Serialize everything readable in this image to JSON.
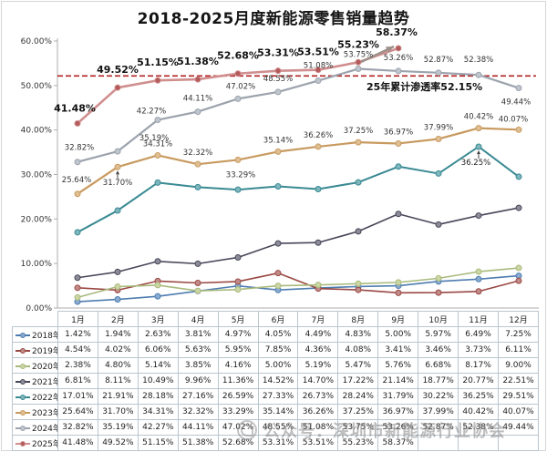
{
  "title": "2018-2025月度新能源零售销量趋势",
  "watermark": "公众号：深圳市新能源行业协会",
  "chart_data": {
    "type": "line",
    "title": "2018-2025月度新能源零售销量趋势",
    "xlabel": "",
    "ylabel": "",
    "ylim": [
      0,
      60
    ],
    "grid": false,
    "legend_position": "table-left-column",
    "ytick_labels": [
      "0.00%",
      "10.00%",
      "20.00%",
      "30.00%",
      "40.00%",
      "50.00%",
      "60.00%"
    ],
    "categories": [
      "1月",
      "2月",
      "3月",
      "4月",
      "5月",
      "6月",
      "7月",
      "8月",
      "9月",
      "10月",
      "11月",
      "12月"
    ],
    "series": [
      {
        "name": "2018年",
        "color": "#4E7CB0",
        "marker": "#8AABD0",
        "width": 1.6,
        "values": [
          1.42,
          1.94,
          2.63,
          3.81,
          4.97,
          4.05,
          4.49,
          4.83,
          5.0,
          5.97,
          6.49,
          7.25
        ]
      },
      {
        "name": "2019年",
        "color": "#9A4843",
        "marker": "#C08B88",
        "width": 1.6,
        "values": [
          4.54,
          4.02,
          6.06,
          5.63,
          5.95,
          7.85,
          4.36,
          4.08,
          3.41,
          3.46,
          3.73,
          6.11
        ]
      },
      {
        "name": "2020年",
        "color": "#A9BA7D",
        "marker": "#CBD6A4",
        "width": 1.6,
        "values": [
          2.38,
          4.8,
          5.14,
          3.85,
          4.16,
          5.0,
          5.19,
          5.47,
          5.76,
          6.68,
          8.17,
          9.0
        ]
      },
      {
        "name": "2021年",
        "color": "#47475A",
        "marker": "#8C8C99",
        "width": 1.6,
        "values": [
          6.81,
          8.11,
          10.49,
          9.96,
          11.36,
          14.52,
          14.7,
          17.22,
          21.14,
          18.77,
          20.77,
          22.51
        ]
      },
      {
        "name": "2022年",
        "color": "#3A8A93",
        "marker": "#7FB6BD",
        "width": 2.0,
        "values": [
          17.01,
          21.91,
          28.18,
          27.16,
          26.59,
          27.33,
          26.73,
          28.24,
          31.79,
          30.22,
          36.25,
          29.51
        ]
      },
      {
        "name": "2023年",
        "color": "#C89A5F",
        "marker": "#DEBE92",
        "width": 2.2,
        "values": [
          25.64,
          31.7,
          34.31,
          32.32,
          33.29,
          35.14,
          36.26,
          37.25,
          36.97,
          37.99,
          40.42,
          40.07
        ],
        "labels": {
          "size": 8.5,
          "bold": false,
          "default": [
            0,
            -10
          ],
          "offsets": {
            "0": [
              -1,
              -13
            ],
            "1": [
              0,
              15
            ],
            "4": [
              3,
              14
            ],
            "11": [
              -6,
              -9
            ]
          }
        }
      },
      {
        "name": "2024年",
        "color": "#9CA3AD",
        "marker": "#BFC5CC",
        "width": 2.2,
        "values": [
          32.82,
          35.19,
          42.27,
          44.11,
          47.02,
          48.55,
          51.08,
          53.75,
          53.26,
          52.87,
          52.38,
          49.44
        ],
        "labels": {
          "size": 8.5,
          "bold": false,
          "default": [
            0,
            -12
          ],
          "offsets": {
            "0": [
              2,
              -13
            ],
            "1": [
              40,
              -12
            ],
            "2": [
              -7,
              -7
            ],
            "4": [
              3,
              -11
            ],
            "6": [
              0,
              -14
            ],
            "7": [
              0,
              -13
            ],
            "10": [
              0,
              -14
            ],
            "11": [
              -3,
              13
            ]
          }
        }
      },
      {
        "name": "2025年",
        "color": "#D08E8E",
        "marker": "#B35A5A",
        "width": 2.6,
        "values": [
          41.48,
          49.52,
          51.15,
          51.38,
          52.68,
          53.31,
          53.51,
          55.23,
          58.37,
          null,
          null,
          null
        ],
        "labels": {
          "size": 11,
          "bold": true,
          "default": [
            0,
            -16
          ],
          "offsets": {
            "0": [
              -3,
              -13
            ],
            "8": [
              -2,
              -14
            ]
          }
        }
      }
    ],
    "reference_line": {
      "value": 52.15,
      "label": "25年累计渗透率52.15%",
      "color": "#B22222",
      "label_color": "#111111",
      "label_x": 402,
      "label_y": 99
    },
    "annotations": [
      {
        "type": "point_label",
        "series": 4,
        "month": 10,
        "text": "36.25%",
        "dx": -3,
        "dy": 20,
        "arrow": true
      },
      {
        "type": "point_arrow",
        "series": 5,
        "month": 1
      },
      {
        "type": "big_arrow",
        "x1": 396,
        "y1": 68,
        "x2": 432,
        "y2": 51,
        "color": "#9D9089"
      }
    ]
  }
}
